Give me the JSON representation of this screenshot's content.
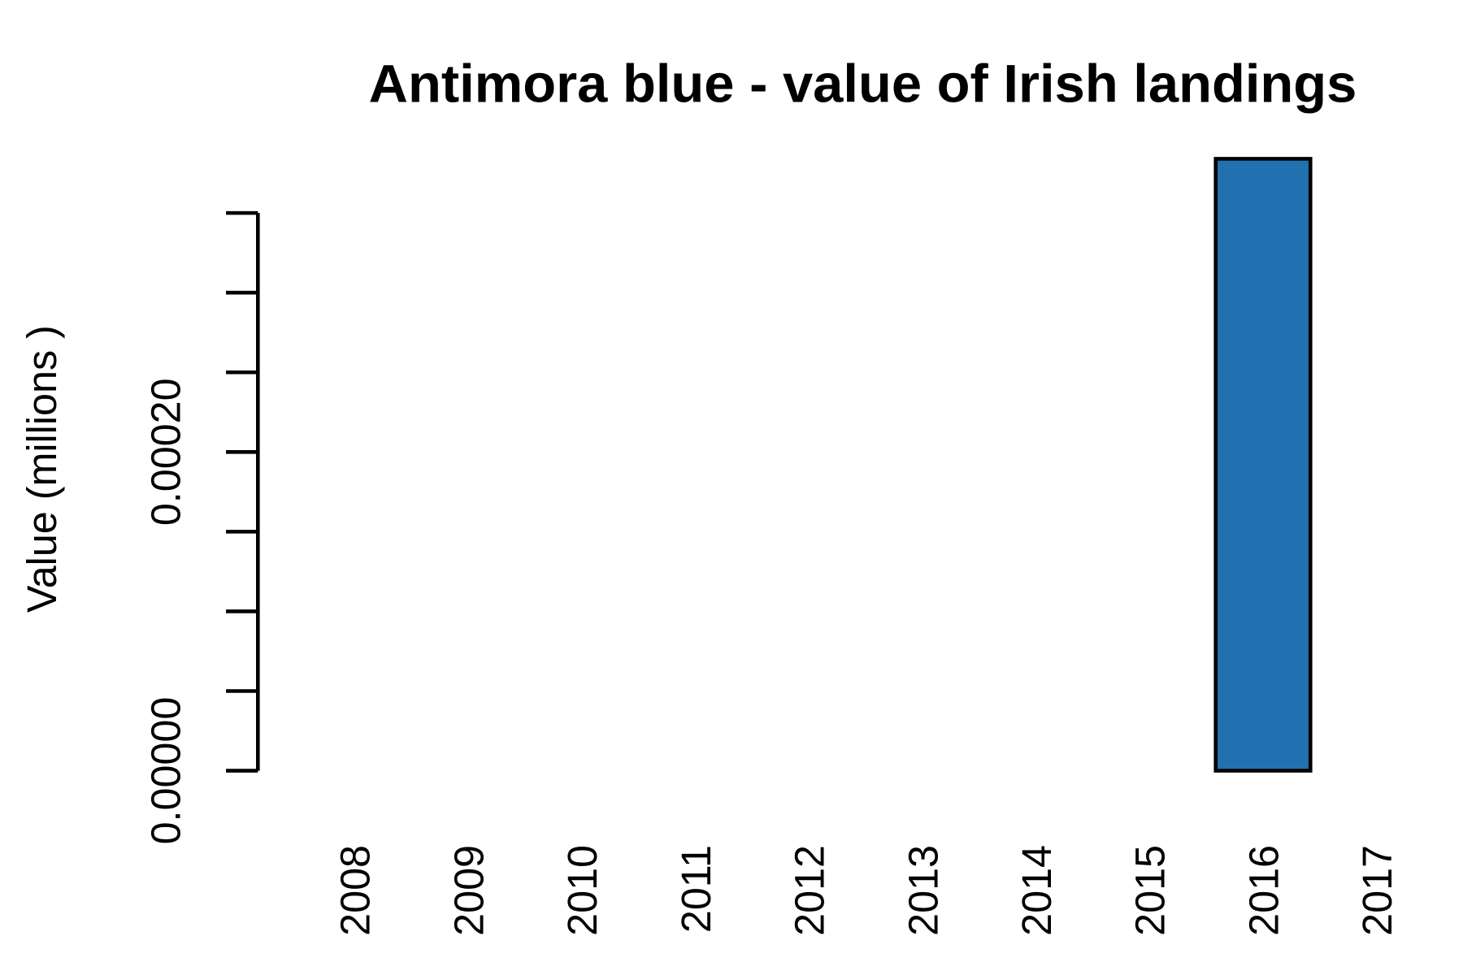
{
  "chart_data": {
    "type": "bar",
    "title": "Antimora blue - value of Irish landings",
    "y_label": "Value (millions )",
    "categories": [
      "2008",
      "2009",
      "2010",
      "2011",
      "2012",
      "2013",
      "2014",
      "2015",
      "2016",
      "2017"
    ],
    "values": [
      null,
      null,
      null,
      null,
      null,
      null,
      null,
      null,
      0.000384,
      null
    ],
    "color": "#2171b0",
    "ylim": [
      0,
      0.000384
    ],
    "yticks": [
      {
        "value": 0,
        "label": "0.00000"
      },
      {
        "value": 5e-05,
        "label": null
      },
      {
        "value": 0.0001,
        "label": null
      },
      {
        "value": 0.00015,
        "label": null
      },
      {
        "value": 0.0002,
        "label": "0.00020"
      },
      {
        "value": 0.00025,
        "label": null
      },
      {
        "value": 0.0003,
        "label": null
      },
      {
        "value": 0.00035,
        "label": null
      }
    ]
  }
}
